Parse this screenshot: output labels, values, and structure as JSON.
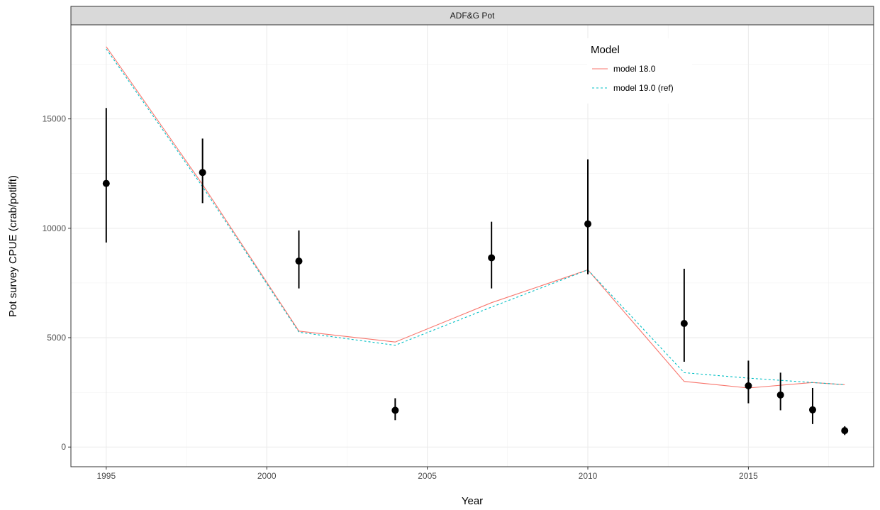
{
  "chart_data": {
    "type": "line",
    "title": "",
    "facet_label": "ADF&G Pot",
    "xlabel": "Year",
    "ylabel": "Pot survey CPUE (crab/potlift)",
    "xlim": [
      1993.9,
      2018.9
    ],
    "ylim": [
      -900,
      19300
    ],
    "x_major_ticks": [
      1995,
      2000,
      2005,
      2010,
      2015
    ],
    "x_minor_ticks": [
      1997.5,
      2002.5,
      2007.5,
      2012.5,
      2017.5
    ],
    "y_major_ticks": [
      0,
      5000,
      10000,
      15000
    ],
    "y_minor_ticks": [
      2500,
      7500,
      12500,
      17500
    ],
    "x_tick_labels": [
      "1995",
      "2000",
      "2005",
      "2010",
      "2015"
    ],
    "y_tick_labels": [
      "0",
      "5000",
      "10000",
      "15000"
    ],
    "grid": true,
    "legend_position": "top-right",
    "legend_title": "Model",
    "series": [
      {
        "name": "model 18.0",
        "color": "#F8766D",
        "linetype": "solid",
        "x": [
          1995,
          1998,
          2001,
          2004,
          2007,
          2010,
          2013,
          2015,
          2017,
          2018
        ],
        "values": [
          18300,
          12000,
          5300,
          4800,
          6600,
          8100,
          3000,
          2700,
          2950,
          2850
        ]
      },
      {
        "name": "model 19.0 (ref)",
        "color": "#00BFC4",
        "linetype": "dashed",
        "x": [
          1995,
          1998,
          2001,
          2004,
          2007,
          2010,
          2013,
          2015,
          2017,
          2018
        ],
        "values": [
          18200,
          11900,
          5250,
          4650,
          6400,
          8100,
          3400,
          3150,
          2950,
          2850
        ]
      }
    ],
    "observed": {
      "x": [
        1995,
        1998,
        2001,
        2004,
        2007,
        2010,
        2013,
        2015,
        2016,
        2017,
        2018
      ],
      "values": [
        12050,
        12550,
        8500,
        1680,
        8650,
        10200,
        5650,
        2800,
        2380,
        1700,
        750
      ],
      "lower": [
        9350,
        11150,
        7250,
        1230,
        7250,
        7900,
        3900,
        2000,
        1680,
        1050,
        550
      ],
      "upper": [
        15500,
        14100,
        9900,
        2230,
        10300,
        13150,
        8150,
        3950,
        3400,
        2700,
        950
      ],
      "color": "#000000"
    }
  }
}
